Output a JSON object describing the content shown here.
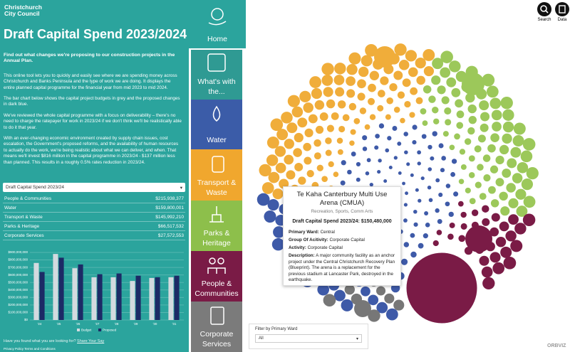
{
  "header": {
    "logo_lines": [
      "Christchurch",
      "City Council"
    ],
    "title": "Draft Capital Spend 2023/2024"
  },
  "intro": {
    "lead": "Find out what changes we're proposing to our construction projects in the Annual Plan.",
    "paragraphs": [
      "This online tool lets you to quickly and easily see where we are spending money across Christchurch and Banks Peninsula and the type of work we are doing. It displays the entire planned capital programme for the financial year from mid 2023 to mid 2024.",
      "The bar chart below shows the capital project budgets in grey and the proposed changes in dark blue.",
      "We've reviewed the whole capital programme with a focus on deliverability – there's no need to charge the ratepayer for work in 2023/24 if we don't think we'll be realistically able to do it that year.",
      "With an ever-changing economic environment created by supply chain issues, cost escalation, the Government's proposed reforms, and the availability of human resources to actually do the work, we're being realistic about what we can deliver, and when. That means we'll invest $816 million in the capital programme in 2023/24 - $137 million less than planned. This results in a roughly 0.5% rates reduction in 2023/24."
    ]
  },
  "selector": "Draft Capital Spend 2023/24",
  "table": {
    "rows": [
      [
        "People & Communities",
        "$215,938,377"
      ],
      [
        "Water",
        "$159,800,001"
      ],
      [
        "Transport & Waste",
        "$145,992,210"
      ],
      [
        "Parks & Heritage",
        "$66,517,532"
      ],
      [
        "Corporate Services",
        "$27,572,553"
      ]
    ]
  },
  "chart_data": {
    "type": "bar",
    "categories": [
      "'24",
      "'25",
      "'26",
      "'27",
      "'28",
      "'29",
      "'30",
      "'31"
    ],
    "series": [
      {
        "name": "Budget",
        "color": "#d3dadf",
        "values": [
          760000000,
          880000000,
          690000000,
          570000000,
          570000000,
          520000000,
          560000000,
          570000000
        ]
      },
      {
        "name": "Proposed",
        "color": "#1c2a66",
        "values": [
          640000000,
          830000000,
          740000000,
          610000000,
          620000000,
          590000000,
          570000000,
          590000000
        ]
      }
    ],
    "ylim": [
      0,
      900000000
    ],
    "yticks": [
      {
        "value": 0,
        "label": "$0"
      },
      {
        "value": 100000000,
        "label": "$100,000,000"
      },
      {
        "value": 200000000,
        "label": "$200,000,000"
      },
      {
        "value": 300000000,
        "label": "$300,000,000"
      },
      {
        "value": 400000000,
        "label": "$400,000,000"
      },
      {
        "value": 500000000,
        "label": "$500,000,000"
      },
      {
        "value": 600000000,
        "label": "$600,000,000"
      },
      {
        "value": 700000000,
        "label": "$700,000,000"
      },
      {
        "value": 800000000,
        "label": "$800,000,000"
      },
      {
        "value": 900000000,
        "label": "$900,000,000"
      }
    ],
    "legend": "bottom"
  },
  "footer": {
    "prompt": "Have you found what you are looking for?",
    "link": "Share Your Say",
    "legal": "Privacy Policy Terms and Conditions"
  },
  "nav": [
    "Home",
    "What's with the...",
    "Water",
    "Transport & Waste",
    "Parks & Heritage",
    "People & Communities",
    "Corporate Services"
  ],
  "tools": [
    "Search",
    "Data"
  ],
  "tooltip": {
    "title": "Te Kaha Canterbury Multi Use Arena (CMUA)",
    "subtitle": "Recreation, Sports, Comm Arts",
    "heading": "Draft Capital Spend 2023/24: $150,480,000",
    "fields": [
      {
        "label": "Primary Ward:",
        "value": "Central"
      },
      {
        "label": "Group Of Acitivity:",
        "value": "Corporate Capital"
      },
      {
        "label": "Activity:",
        "value": "Corporate Capital"
      }
    ],
    "description_label": "Description:",
    "description": "A major community facility as an anchor project under the Central Christchurch Recovery Plan (Blueprint). The arena is a replacement for the previous stadium at Lancaster Park, destroyed in the earthquake."
  },
  "filter": {
    "label": "Filter by Primary Ward",
    "value": "All"
  },
  "brand": "ORBVIZ"
}
